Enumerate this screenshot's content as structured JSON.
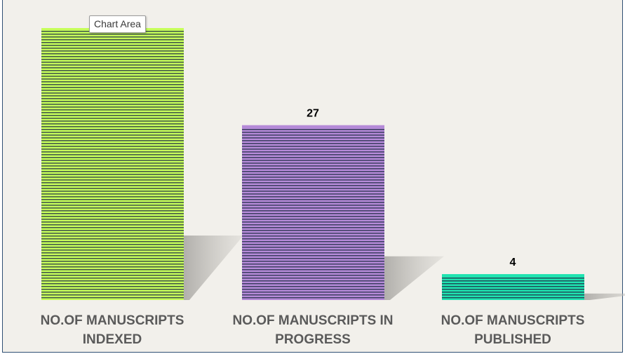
{
  "tooltip": {
    "text": "Chart Area"
  },
  "colors": {
    "background": "#f2f0eb",
    "stripe": "#1f2a44",
    "shadow": "#bdbbb6"
  },
  "chart_data": {
    "type": "bar",
    "categories": [
      [
        "NO.OF MANUSCRIPTS",
        "INDEXED"
      ],
      [
        "NO.OF MANUSCRIPTS IN",
        "PROGRESS"
      ],
      [
        "NO.OF MANUSCRIPTS",
        "PUBLISHED"
      ]
    ],
    "values": [
      42,
      27,
      4
    ],
    "data_labels": [
      "",
      "27",
      "4"
    ],
    "bar_colors": [
      "#c6ff5a",
      "#b58ad8",
      "#1fe3b0"
    ],
    "ylim": [
      0,
      42
    ],
    "grid": false,
    "legend": "none"
  }
}
